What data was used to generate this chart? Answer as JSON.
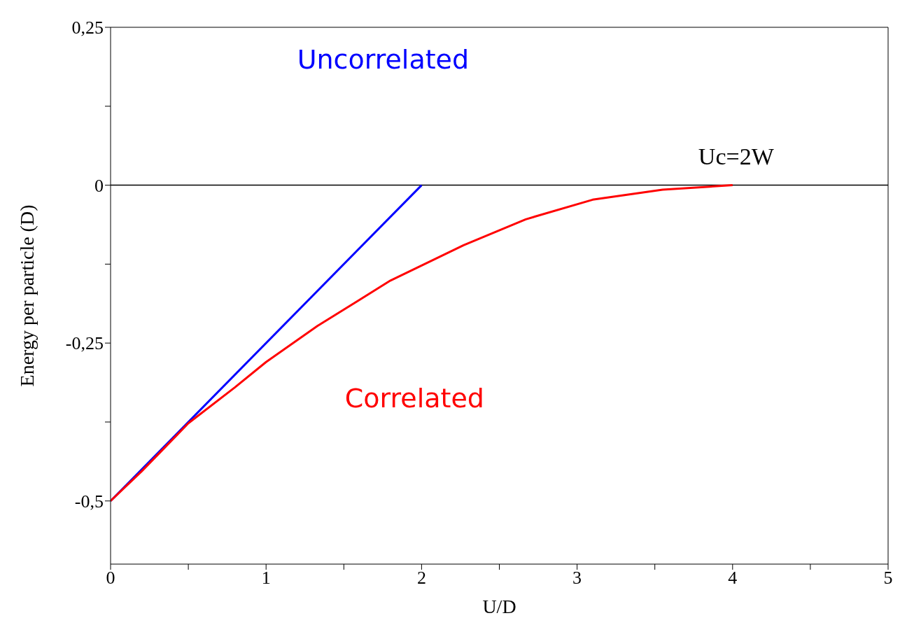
{
  "chart_data": {
    "type": "line",
    "xlabel": "U/D",
    "ylabel": "Energy per particle (D)",
    "xlim": [
      0,
      5
    ],
    "ylim": [
      -0.6,
      0.25
    ],
    "xticks": [
      0,
      {
        "value": 0.5,
        "label": null
      },
      1,
      {
        "value": 1.5,
        "label": null
      },
      2,
      {
        "value": 2.5,
        "label": null
      },
      3,
      {
        "value": 3.5,
        "label": null
      },
      4,
      {
        "value": 4.5,
        "label": null
      },
      5
    ],
    "yticks": [
      {
        "value": -0.5,
        "label": "-0,5"
      },
      {
        "value": -0.375,
        "label": null
      },
      {
        "value": -0.25,
        "label": "-0,25"
      },
      {
        "value": -0.125,
        "label": null
      },
      {
        "value": 0,
        "label": "0"
      },
      {
        "value": 0.125,
        "label": null
      },
      {
        "value": 0.25,
        "label": "0,25"
      }
    ],
    "series": [
      {
        "name": "Uncorrelated",
        "color": "#0000ff",
        "x": [
          0,
          2
        ],
        "values": [
          -0.5,
          0
        ]
      },
      {
        "name": "Correlated",
        "color": "#ff0000",
        "x": [
          0,
          0.2,
          0.5,
          0.8,
          1,
          1.33,
          1.8,
          2.27,
          2.67,
          3.1,
          3.55,
          4
        ],
        "values": [
          -0.5,
          -0.453,
          -0.377,
          -0.32,
          -0.28,
          -0.223,
          -0.151,
          -0.095,
          -0.054,
          -0.023,
          -0.007,
          0
        ]
      }
    ],
    "ref_lines": [
      {
        "axis": "y",
        "value": 0,
        "color": "#000000"
      }
    ],
    "annotations": [
      {
        "text": "Uc=2W",
        "x": 4,
        "y": 0
      }
    ],
    "marker": "none",
    "line_style": "solid"
  }
}
